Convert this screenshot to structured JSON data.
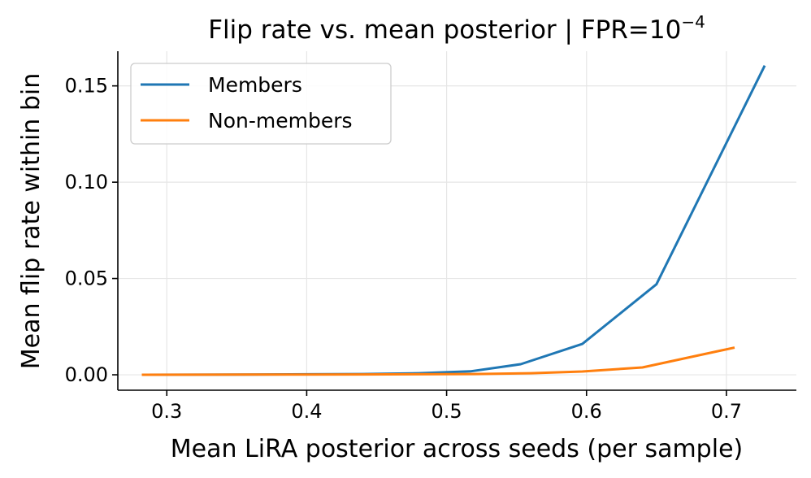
{
  "chart_data": {
    "type": "line",
    "title": "Flip rate vs. mean posterior  |  FPR=10",
    "title_superscript": "−4",
    "xlabel": "Mean LiRA posterior across seeds (per sample)",
    "ylabel": "Mean flip rate within bin",
    "xlim": [
      0.265,
      0.75
    ],
    "ylim": [
      -0.008,
      0.168
    ],
    "xticks": [
      0.3,
      0.4,
      0.5,
      0.6,
      0.7
    ],
    "xtick_labels": [
      "0.3",
      "0.4",
      "0.5",
      "0.6",
      "0.7"
    ],
    "yticks": [
      0.0,
      0.05,
      0.1,
      0.15
    ],
    "ytick_labels": [
      "0.00",
      "0.05",
      "0.10",
      "0.15"
    ],
    "grid": true,
    "legend_position": "upper-left",
    "series": [
      {
        "name": "Members",
        "color": "#1f77b4",
        "x": [
          0.283,
          0.36,
          0.44,
          0.48,
          0.517,
          0.553,
          0.597,
          0.65,
          0.727
        ],
        "y": [
          0.0,
          0.0001,
          0.0004,
          0.0008,
          0.0018,
          0.0055,
          0.016,
          0.047,
          0.16
        ]
      },
      {
        "name": "Non-members",
        "color": "#ff7f0e",
        "x": [
          0.283,
          0.36,
          0.44,
          0.52,
          0.56,
          0.597,
          0.64,
          0.705
        ],
        "y": [
          0.0,
          0.0001,
          0.0002,
          0.0004,
          0.0008,
          0.0017,
          0.0038,
          0.014
        ]
      }
    ]
  }
}
